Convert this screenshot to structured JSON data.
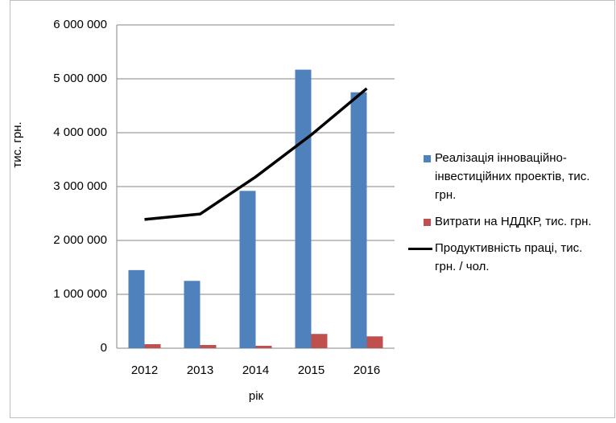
{
  "chart_data": {
    "type": "bar",
    "categories": [
      "2012",
      "2013",
      "2014",
      "2015",
      "2016"
    ],
    "series": [
      {
        "name": "Реалізація інноваційно-інвестиційних проектів, тис. грн.",
        "color": "#4f81bd",
        "values": [
          1450000,
          1250000,
          2920000,
          5170000,
          4750000
        ]
      },
      {
        "name": "Витрати на НДДКР, тис. грн.",
        "color": "#c0504d",
        "values": [
          75000,
          60000,
          45000,
          265000,
          220000
        ]
      },
      {
        "name": "Продуктивність праці, тис. грн. / чол.",
        "color": "#000000",
        "type": "line",
        "values": [
          2390000,
          2490000,
          3180000,
          3960000,
          4820000
        ]
      }
    ],
    "ylabel": "тис. грн.",
    "xlabel": "рік",
    "ylim": [
      0,
      6000000
    ],
    "yticks": [
      0,
      {
        "value": 1000000,
        "label": "1 000 000"
      },
      {
        "value": 2000000,
        "label": "2 000 000"
      },
      {
        "value": 3000000,
        "label": "3 000 000"
      },
      {
        "value": 4000000,
        "label": "4 000 000"
      },
      {
        "value": 5000000,
        "label": "5 000 000"
      },
      {
        "value": 6000000,
        "label": "6 000 000"
      }
    ],
    "grid": true,
    "legend": "right"
  }
}
